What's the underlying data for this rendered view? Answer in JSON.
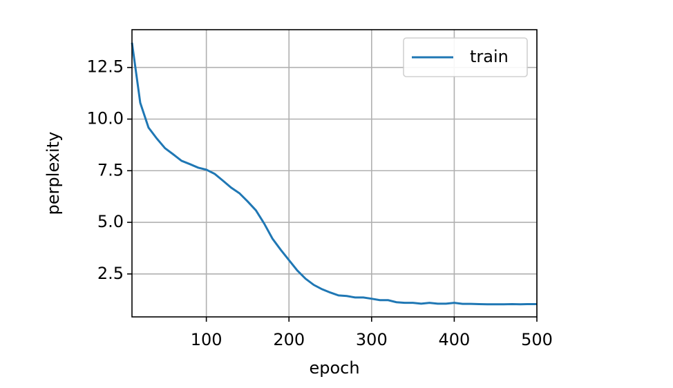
{
  "chart_data": {
    "type": "line",
    "xlabel": "epoch",
    "ylabel": "perplexity",
    "x": [
      10,
      20,
      30,
      40,
      50,
      60,
      70,
      80,
      90,
      100,
      110,
      120,
      130,
      140,
      150,
      160,
      170,
      180,
      190,
      200,
      210,
      220,
      230,
      240,
      250,
      260,
      270,
      280,
      290,
      300,
      310,
      320,
      330,
      340,
      350,
      360,
      370,
      380,
      390,
      400,
      410,
      420,
      430,
      440,
      450,
      460,
      470,
      480,
      490,
      500
    ],
    "series": [
      {
        "name": "train",
        "color": "#1f77b4",
        "values": [
          13.7,
          10.79,
          9.59,
          9.06,
          8.59,
          8.29,
          7.98,
          7.82,
          7.65,
          7.55,
          7.35,
          7.02,
          6.68,
          6.41,
          6.01,
          5.58,
          4.94,
          4.21,
          3.67,
          3.17,
          2.67,
          2.27,
          1.97,
          1.76,
          1.6,
          1.46,
          1.43,
          1.36,
          1.36,
          1.3,
          1.23,
          1.23,
          1.13,
          1.1,
          1.1,
          1.06,
          1.1,
          1.06,
          1.06,
          1.1,
          1.05,
          1.05,
          1.04,
          1.03,
          1.03,
          1.03,
          1.04,
          1.03,
          1.04,
          1.04
        ]
      }
    ],
    "xlim": [
      10,
      500
    ],
    "xticks": [
      100,
      200,
      300,
      400,
      500
    ],
    "ylim": [
      0.42,
      14.33
    ],
    "yticks": [
      {
        "value": 2.5,
        "label": "2.5"
      },
      {
        "value": 5,
        "label": "5.0"
      },
      {
        "value": 7.5,
        "label": "7.5"
      },
      {
        "value": 10,
        "label": "10.0"
      },
      {
        "value": 12.5,
        "label": "12.5"
      }
    ],
    "grid": true,
    "legend": "upper right"
  }
}
